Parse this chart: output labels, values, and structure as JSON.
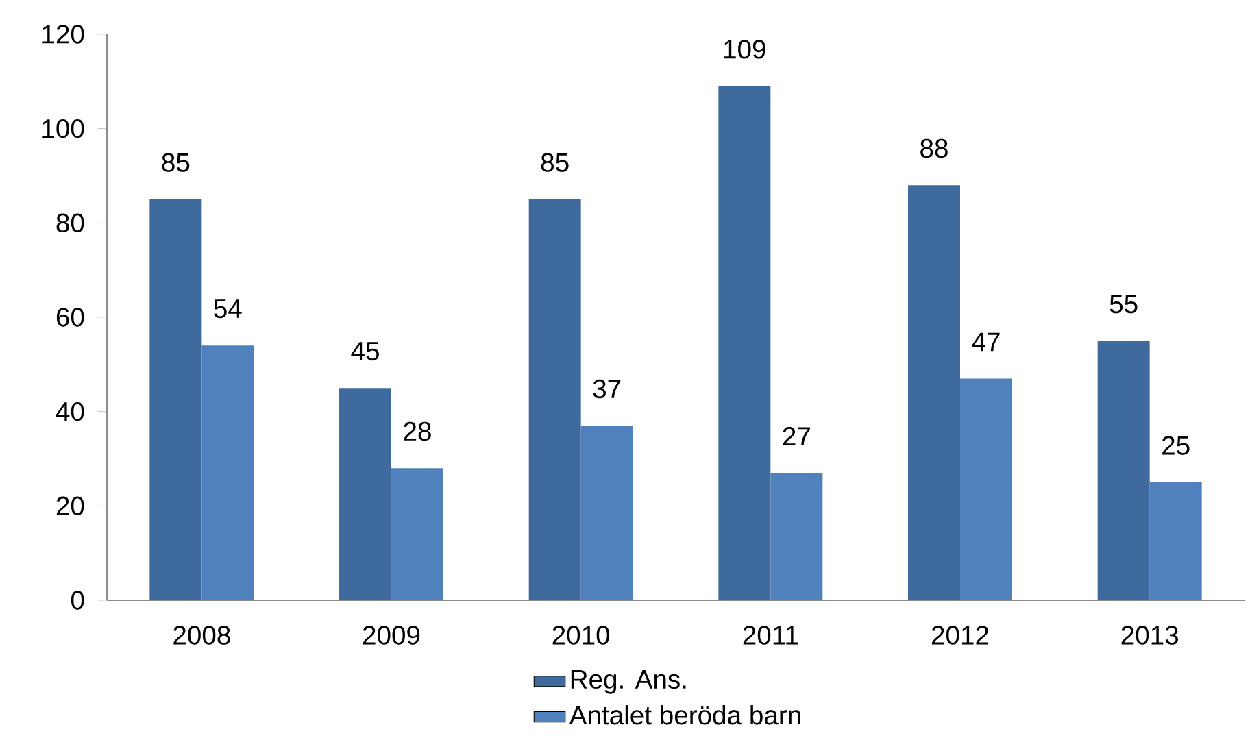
{
  "chart_data": {
    "type": "bar",
    "categories": [
      "2008",
      "2009",
      "2010",
      "2011",
      "2012",
      "2013"
    ],
    "series": [
      {
        "name": "Reg. Ans.",
        "color": "#3f6a9e",
        "values": [
          85,
          45,
          85,
          109,
          88,
          55
        ]
      },
      {
        "name": "Antalet beröda barn",
        "color": "#4f81bd",
        "values": [
          54,
          28,
          37,
          27,
          47,
          25
        ]
      }
    ],
    "ylim": [
      0,
      120
    ],
    "yticks": [
      0,
      20,
      40,
      60,
      80,
      100,
      120
    ],
    "data_labels": true,
    "grid": false,
    "legend": "bottom"
  }
}
